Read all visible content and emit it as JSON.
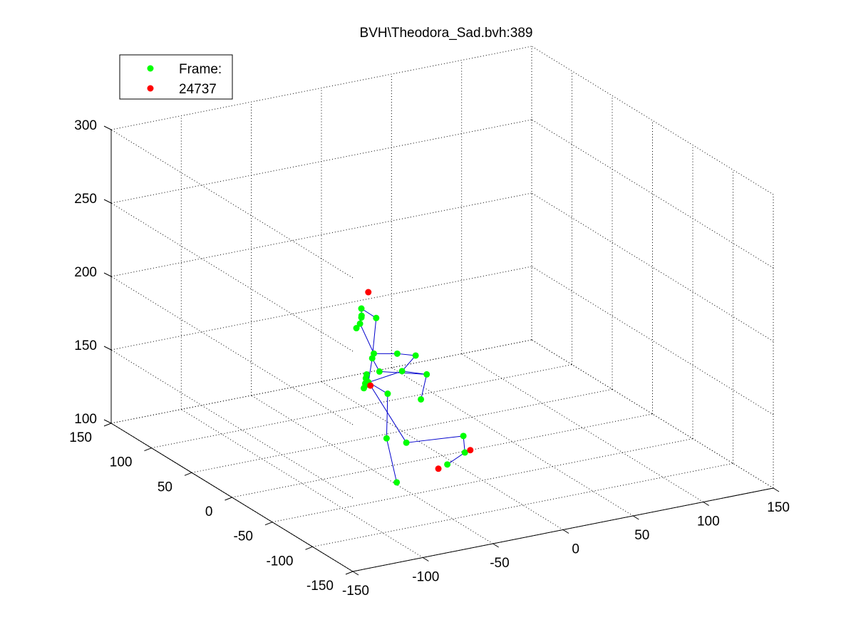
{
  "chart_data": {
    "type": "scatter",
    "title": "BVH\\Theodora_Sad.bvh:389",
    "legend": {
      "placement": "top-left",
      "entries": [
        {
          "label": "Frame:",
          "color": "#00ff00"
        },
        {
          "label": "24737",
          "color": "#ff0000"
        }
      ]
    },
    "grid": true,
    "x_axis": {
      "range": [
        -150,
        150
      ],
      "ticks": [
        "-150",
        "-100",
        "-50",
        "0",
        "50",
        "100",
        "150"
      ]
    },
    "y_axis": {
      "range": [
        -150,
        150
      ],
      "ticks": [
        "-150",
        "-100",
        "-50",
        "0",
        "50",
        "100",
        "150"
      ]
    },
    "z_axis": {
      "range": [
        100,
        300
      ],
      "ticks": [
        "100",
        "150",
        "200",
        "250",
        "300"
      ]
    },
    "colors": {
      "joint": "#00ff00",
      "end_site": "#ff0000",
      "bone": "#0000cc"
    },
    "joints": [
      {
        "x": -33,
        "y": 43,
        "z": 192
      },
      {
        "x": -34,
        "y": 41,
        "z": 188
      },
      {
        "x": -37,
        "y": 36,
        "z": 189
      },
      {
        "x": -23,
        "y": 42,
        "z": 184
      },
      {
        "x": -40,
        "y": 37,
        "z": 182
      },
      {
        "x": -38,
        "y": 36,
        "z": 185
      },
      {
        "x": -31,
        "y": 31,
        "z": 165
      },
      {
        "x": -12,
        "y": 35,
        "z": 160
      },
      {
        "x": -27,
        "y": 40,
        "z": 158
      },
      {
        "x": -27,
        "y": 31,
        "z": 152
      },
      {
        "x": 4,
        "y": 40,
        "z": 154
      },
      {
        "x": -8,
        "y": 36,
        "z": 147
      },
      {
        "x": 5,
        "y": 28,
        "z": 145
      },
      {
        "x": -2,
        "y": 23,
        "z": 131
      },
      {
        "x": -32,
        "y": 36,
        "z": 144
      },
      {
        "x": -24,
        "y": 26,
        "z": 138
      },
      {
        "x": -38,
        "y": 3,
        "z": 118
      },
      {
        "x": -48,
        "y": -27,
        "z": 100
      },
      {
        "x": -17,
        "y": 15,
        "z": 107
      },
      {
        "x": 30,
        "y": 26,
        "z": 99
      },
      {
        "x": -5,
        "y": -15,
        "z": 100
      },
      {
        "x": 15,
        "y": -2,
        "z": 100
      },
      {
        "x": -40,
        "y": 26,
        "z": 148
      },
      {
        "x": -41,
        "y": 26,
        "z": 145
      },
      {
        "x": -39,
        "y": 27,
        "z": 151
      },
      {
        "x": -39,
        "y": 26,
        "z": 154
      },
      {
        "x": -37,
        "y": 28,
        "z": 146
      },
      {
        "x": -38,
        "y": 28,
        "z": 148
      }
    ],
    "bones": [
      [
        0,
        1
      ],
      [
        1,
        2
      ],
      [
        0,
        3
      ],
      [
        2,
        4
      ],
      [
        1,
        5
      ],
      [
        5,
        6
      ],
      [
        6,
        7
      ],
      [
        3,
        8
      ],
      [
        8,
        9
      ],
      [
        9,
        12
      ],
      [
        7,
        10
      ],
      [
        10,
        11
      ],
      [
        11,
        12
      ],
      [
        12,
        13
      ],
      [
        8,
        14
      ],
      [
        14,
        15
      ],
      [
        15,
        16
      ],
      [
        16,
        17
      ],
      [
        14,
        18
      ],
      [
        18,
        19
      ],
      [
        19,
        21
      ],
      [
        21,
        20
      ],
      [
        11,
        22
      ],
      [
        22,
        23
      ],
      [
        23,
        24
      ],
      [
        24,
        25
      ],
      [
        23,
        26
      ],
      [
        26,
        27
      ]
    ],
    "end_sites": [
      {
        "x": -20,
        "y": 57,
        "z": 196
      },
      {
        "x": -30,
        "y": 37,
        "z": 141
      },
      {
        "x": -20,
        "y": -30,
        "z": 105
      },
      {
        "x": 20,
        "y": 0,
        "z": 100
      }
    ]
  }
}
